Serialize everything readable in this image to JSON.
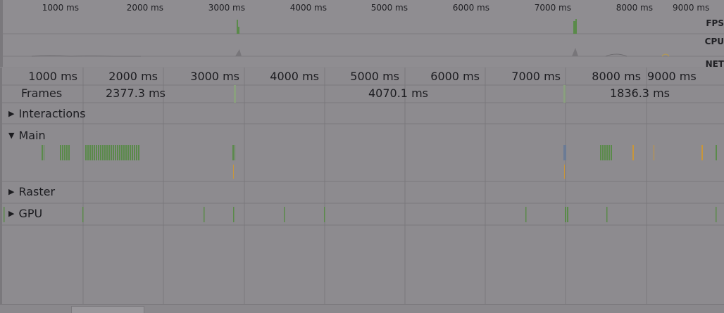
{
  "overview": {
    "time_labels": [
      "1000 ms",
      "2000 ms",
      "3000 ms",
      "4000 ms",
      "5000 ms",
      "6000 ms",
      "7000 ms",
      "8000 ms",
      "9000 ms"
    ],
    "side_labels": [
      "FPS",
      "CPU",
      "NET"
    ]
  },
  "timeline": {
    "time_labels": [
      "1000 ms",
      "2000 ms",
      "3000 ms",
      "4000 ms",
      "5000 ms",
      "6000 ms",
      "7000 ms",
      "8000 ms",
      "9000 ms"
    ],
    "frames_label": "Frames",
    "frame_durations": [
      "2377.3 ms",
      "4070.1 ms",
      "1836.3 ms"
    ]
  },
  "tracks": {
    "interactions": "Interactions",
    "main": "Main",
    "raster": "Raster",
    "gpu": "GPU"
  },
  "colors": {
    "green": "#5a8a4a",
    "orange": "#c8963a",
    "blue": "#6b7b95",
    "grid": "#7b797d"
  }
}
